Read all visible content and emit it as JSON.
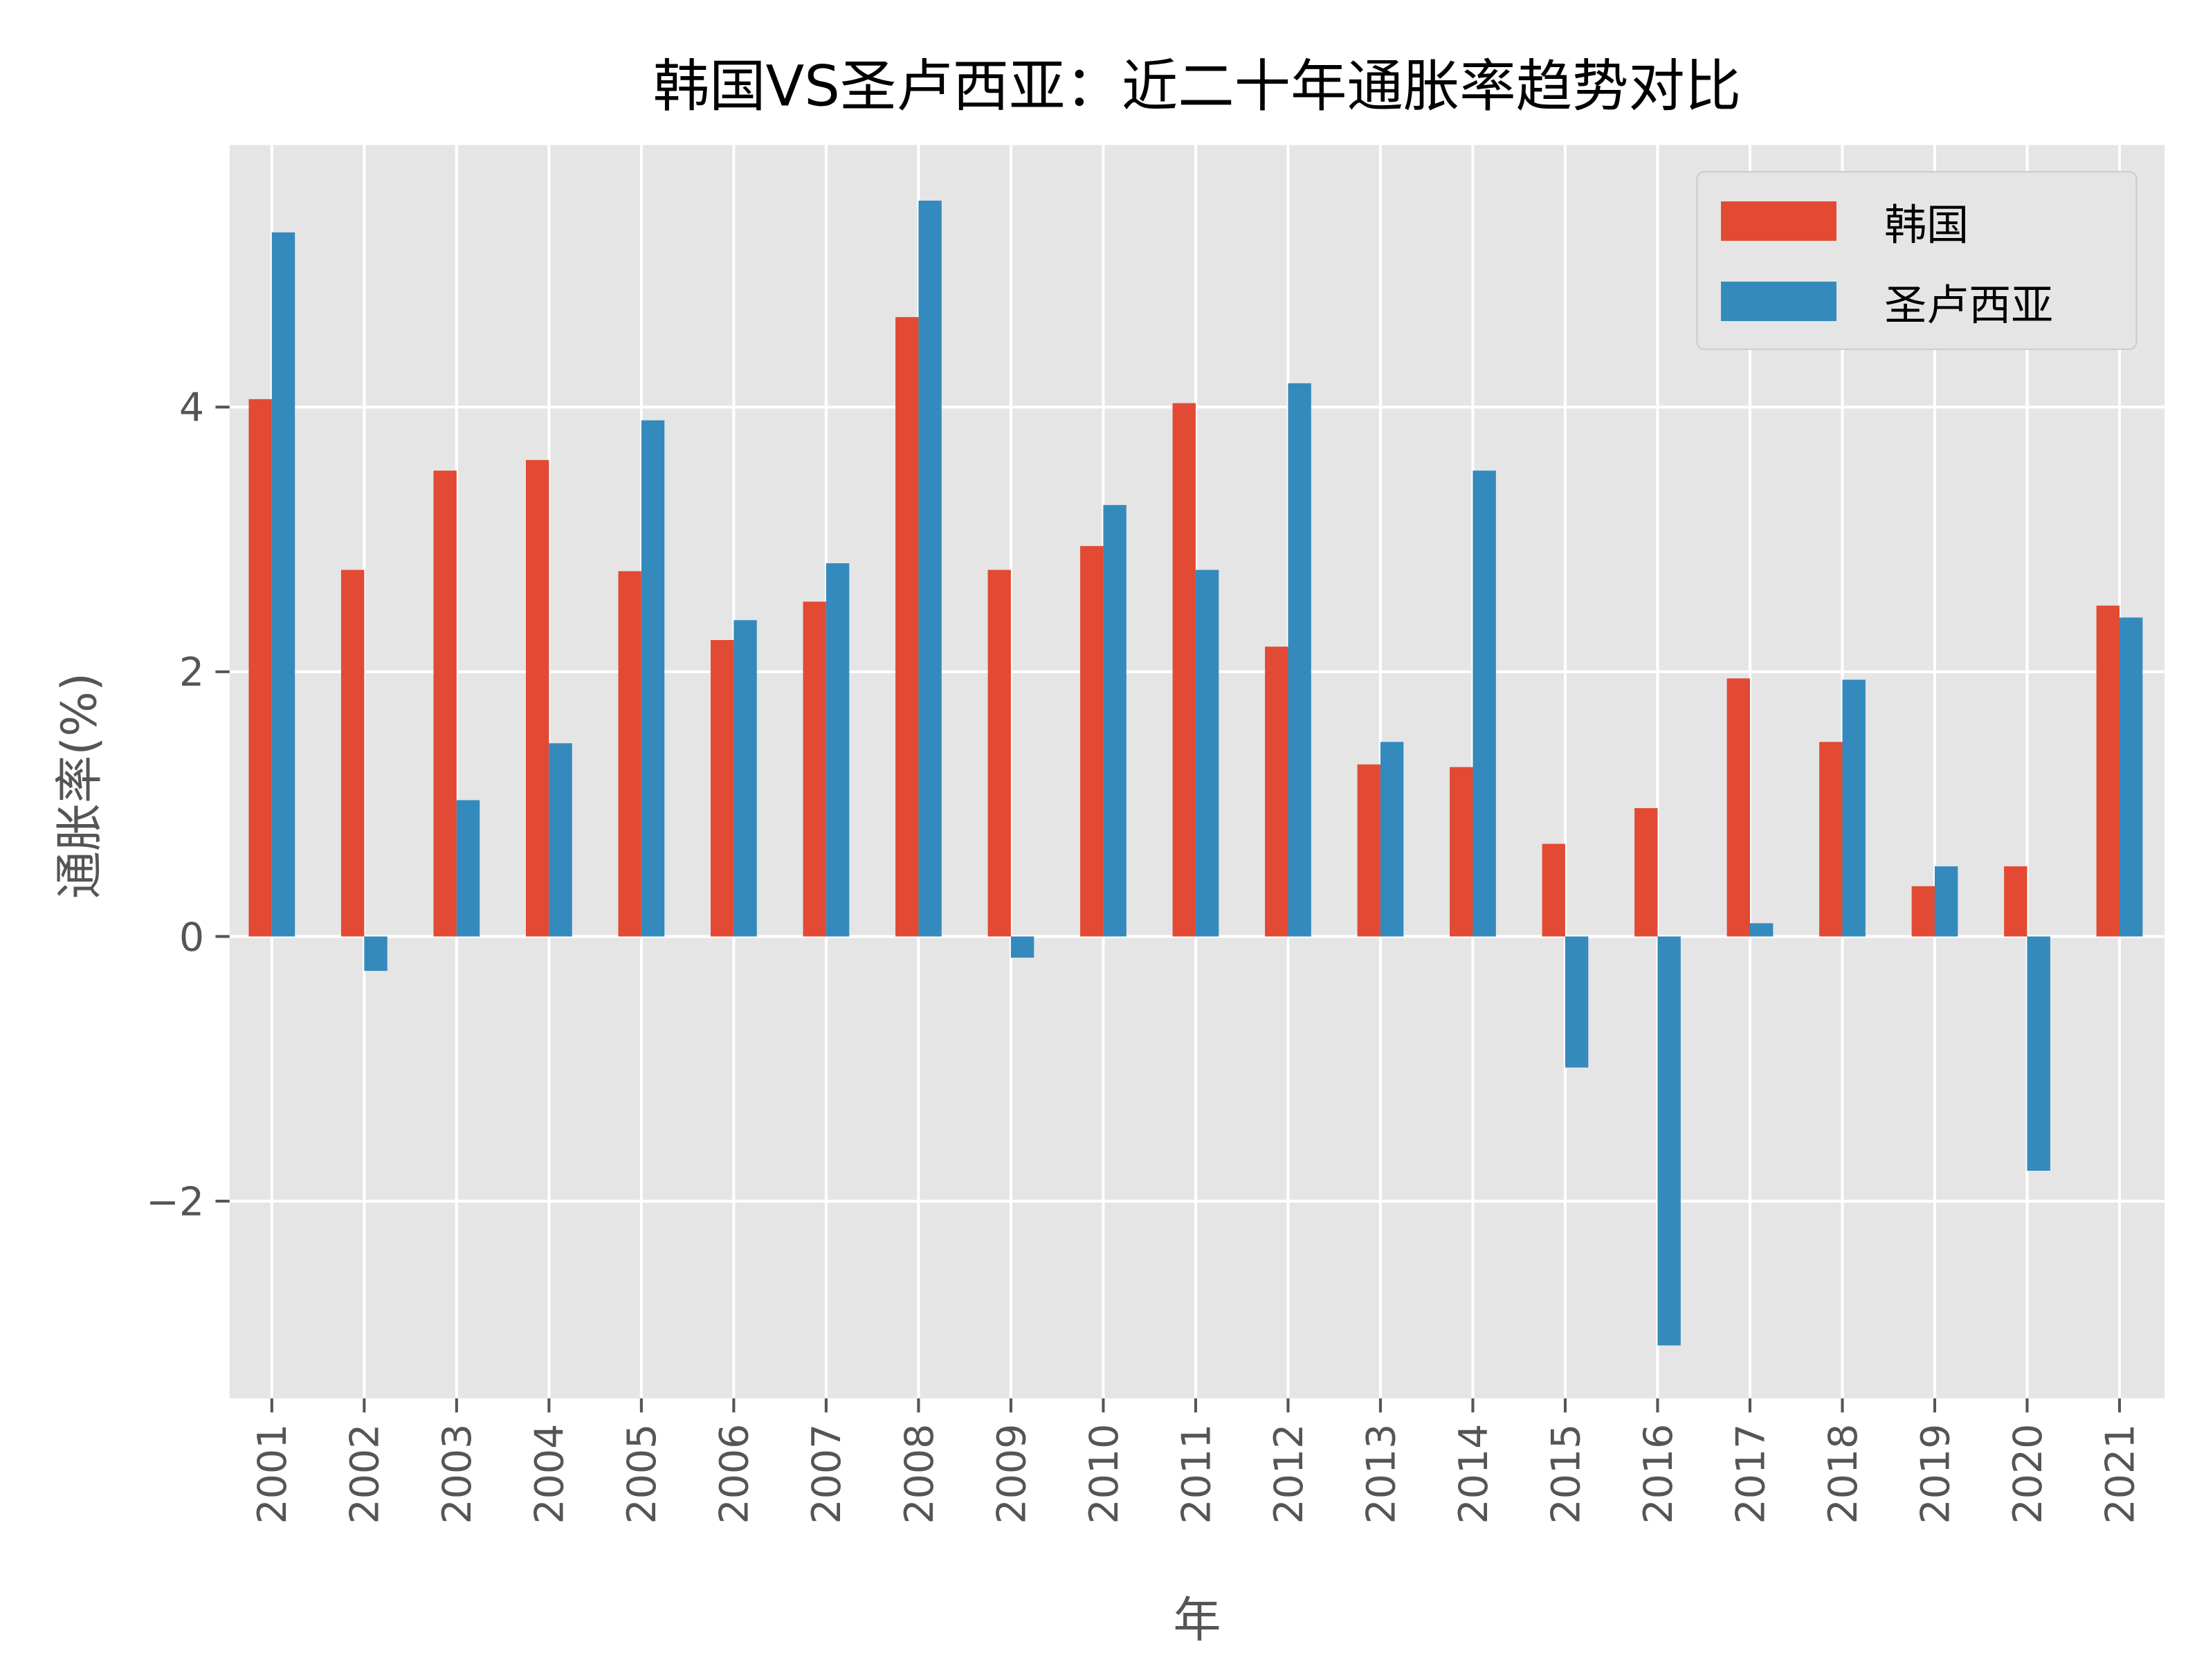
{
  "chart_data": {
    "type": "bar",
    "title": "韩国VS圣卢西亚：近二十年通胀率趋势对比",
    "xlabel": "年",
    "ylabel": "通胀率(%)",
    "categories": [
      "2001",
      "2002",
      "2003",
      "2004",
      "2005",
      "2006",
      "2007",
      "2008",
      "2009",
      "2010",
      "2011",
      "2012",
      "2013",
      "2014",
      "2015",
      "2016",
      "2017",
      "2018",
      "2019",
      "2020",
      "2021"
    ],
    "series": [
      {
        "name": "韩国",
        "color": "#E24A33",
        "values": [
          4.06,
          2.77,
          3.52,
          3.6,
          2.76,
          2.24,
          2.53,
          4.68,
          2.77,
          2.95,
          4.03,
          2.19,
          1.3,
          1.28,
          0.7,
          0.97,
          1.95,
          1.47,
          0.38,
          0.53,
          2.5
        ]
      },
      {
        "name": "圣卢西亚",
        "color": "#348ABD",
        "values": [
          5.32,
          -0.26,
          1.03,
          1.46,
          3.9,
          2.39,
          2.82,
          5.56,
          -0.16,
          3.26,
          2.77,
          4.18,
          1.47,
          3.52,
          -0.99,
          -3.09,
          0.1,
          1.94,
          0.53,
          -1.77,
          2.41
        ]
      }
    ],
    "yticks": [
      "−2",
      "0",
      "2",
      "4"
    ],
    "ytick_values": [
      -2,
      0,
      2,
      4
    ],
    "ylim": [
      -3.49,
      5.98
    ],
    "grid": true,
    "legend": "top-right",
    "background": "#E5E5E5"
  }
}
